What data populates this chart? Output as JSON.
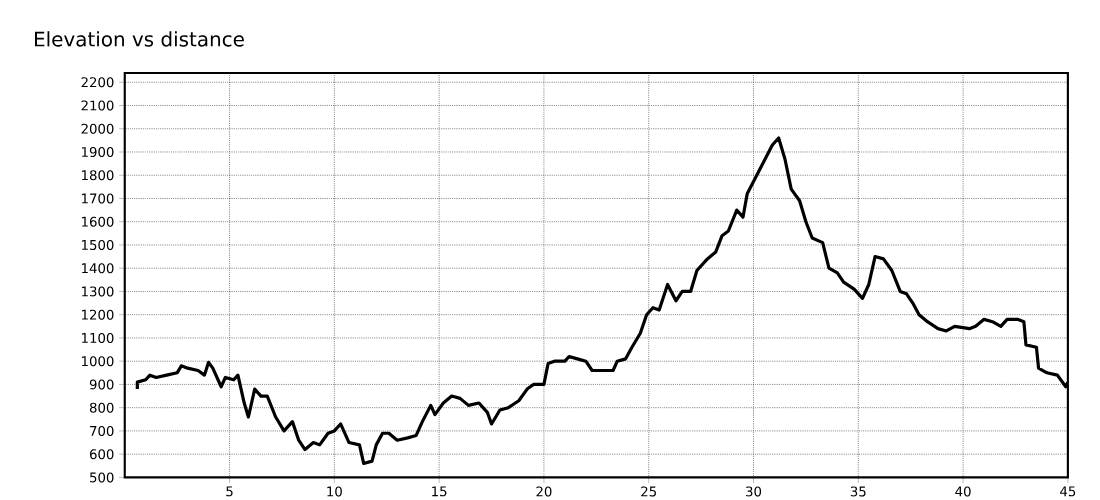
{
  "chart_data": {
    "type": "line",
    "title": "Elevation vs distance",
    "xlim": [
      0,
      45
    ],
    "ylim": [
      500,
      2240
    ],
    "xticks": [
      5,
      10,
      15,
      20,
      25,
      30,
      35,
      40,
      45
    ],
    "yticks": [
      500,
      600,
      700,
      800,
      900,
      1000,
      1100,
      1200,
      1300,
      1400,
      1500,
      1600,
      1700,
      1800,
      1900,
      2000,
      2100,
      2200
    ],
    "grid": true,
    "marker": "none",
    "line_style": "solid",
    "series": [
      {
        "color": "#000000",
        "x": [
          0.6,
          0.6,
          1.0,
          1.2,
          1.5,
          2.0,
          2.5,
          2.7,
          3.0,
          3.5,
          3.8,
          4.0,
          4.2,
          4.6,
          4.8,
          5.2,
          5.4,
          5.7,
          5.9,
          6.2,
          6.5,
          6.8,
          7.2,
          7.6,
          8.0,
          8.3,
          8.6,
          9.0,
          9.3,
          9.7,
          10.0,
          10.3,
          10.7,
          11.2,
          11.4,
          11.8,
          12.0,
          12.3,
          12.6,
          13.0,
          13.5,
          13.9,
          14.2,
          14.6,
          14.8,
          15.2,
          15.6,
          16.0,
          16.4,
          16.9,
          17.3,
          17.5,
          17.9,
          18.3,
          18.8,
          19.2,
          19.5,
          20.0,
          20.2,
          20.5,
          21.0,
          21.2,
          21.6,
          22.0,
          22.3,
          22.6,
          23.0,
          23.3,
          23.5,
          23.9,
          24.2,
          24.6,
          24.9,
          25.2,
          25.5,
          25.9,
          26.3,
          26.6,
          27.0,
          27.3,
          27.8,
          28.2,
          28.5,
          28.8,
          29.2,
          29.5,
          29.7,
          30.1,
          30.5,
          30.9,
          31.2,
          31.5,
          31.8,
          32.2,
          32.5,
          32.8,
          33.3,
          33.6,
          34.0,
          34.3,
          34.8,
          35.2,
          35.5,
          35.8,
          36.2,
          36.6,
          37.0,
          37.3,
          37.6,
          37.9,
          38.3,
          38.8,
          39.2,
          39.6,
          40.3,
          40.6,
          41.0,
          41.4,
          41.8,
          42.1,
          42.6,
          42.9,
          43.0,
          43.5,
          43.6,
          44.0,
          44.5,
          44.9,
          45.0
        ],
        "values": [
          880,
          910,
          920,
          940,
          930,
          940,
          950,
          980,
          970,
          960,
          940,
          995,
          970,
          890,
          930,
          920,
          940,
          820,
          760,
          880,
          850,
          850,
          760,
          700,
          740,
          660,
          620,
          650,
          640,
          690,
          700,
          730,
          650,
          640,
          560,
          570,
          640,
          690,
          690,
          660,
          670,
          680,
          740,
          810,
          770,
          820,
          850,
          840,
          810,
          820,
          780,
          730,
          790,
          800,
          830,
          880,
          900,
          900,
          990,
          1000,
          1000,
          1020,
          1010,
          1000,
          960,
          960,
          960,
          960,
          1000,
          1010,
          1060,
          1120,
          1200,
          1230,
          1220,
          1330,
          1260,
          1300,
          1300,
          1390,
          1440,
          1470,
          1540,
          1560,
          1650,
          1620,
          1720,
          1790,
          1860,
          1930,
          1960,
          1870,
          1740,
          1690,
          1600,
          1530,
          1510,
          1400,
          1380,
          1340,
          1310,
          1270,
          1330,
          1450,
          1440,
          1390,
          1300,
          1290,
          1250,
          1200,
          1170,
          1140,
          1130,
          1150,
          1140,
          1150,
          1180,
          1170,
          1150,
          1180,
          1180,
          1170,
          1070,
          1060,
          970,
          950,
          940,
          890,
          910
        ]
      }
    ]
  }
}
